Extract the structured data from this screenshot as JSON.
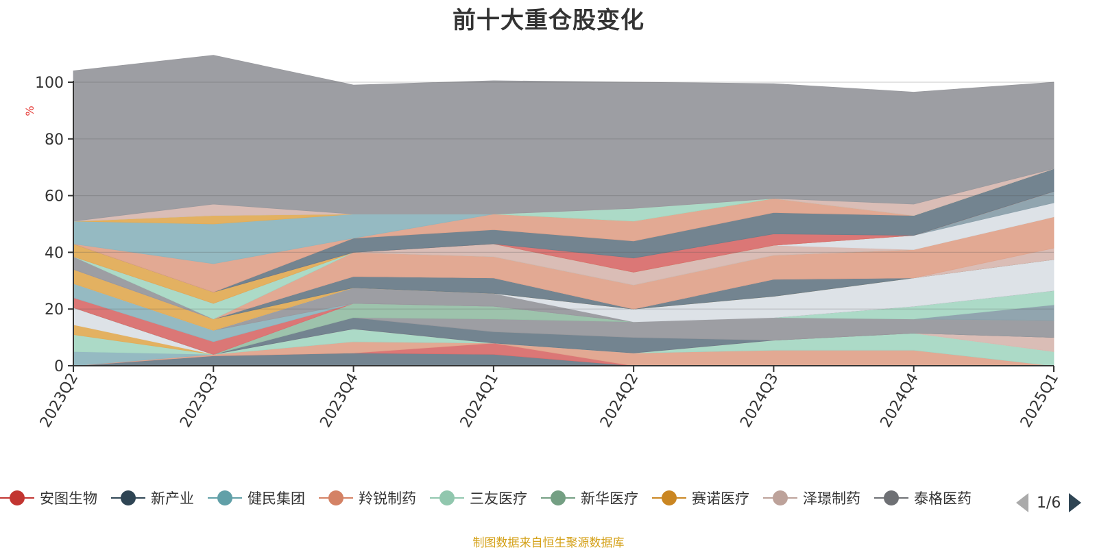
{
  "header": {
    "title": "前十大重仓股变化"
  },
  "footer": {
    "source": "制图数据来自恒生聚源数据库"
  },
  "pager": {
    "text": "1/6"
  },
  "colors": {
    "footer": "#d4a017",
    "pager_active": "#2f4554",
    "pager_inactive": "#aaaaaa",
    "unit": "#e53935"
  },
  "chart_data": {
    "type": "area",
    "title": "前十大重仓股变化",
    "ylabel": "%",
    "ylim": [
      0,
      100
    ],
    "yticks": [
      0,
      20,
      40,
      60,
      80,
      100
    ],
    "grid": true,
    "legend_position": "bottom",
    "categories": [
      "2023Q2",
      "2023Q3",
      "2023Q4",
      "2024Q1",
      "2024Q2",
      "2024Q3",
      "2024Q4",
      "2025Q1"
    ],
    "series": [
      {
        "name": "",
        "color": "#6b7d8a",
        "values": [
          0,
          3.5,
          4.5,
          4,
          0,
          0,
          0,
          0
        ]
      },
      {
        "name": "",
        "color": "#d9706f",
        "values": [
          0,
          0,
          0,
          4,
          0,
          0,
          0,
          0
        ]
      },
      {
        "name": "",
        "color": "#e0a48d",
        "values": [
          0,
          0.5,
          4,
          0,
          4.5,
          5.5,
          5.5,
          0
        ]
      },
      {
        "name": "",
        "color": "#8fb6bf",
        "values": [
          5,
          0,
          0,
          0,
          0,
          0,
          0,
          0
        ]
      },
      {
        "name": "",
        "color": "#a8d8c4",
        "values": [
          6,
          0,
          4.5,
          0,
          0,
          3.5,
          6,
          5
        ]
      },
      {
        "name": "",
        "color": "#e2ad59",
        "values": [
          3.5,
          0,
          0,
          0,
          0,
          0,
          0,
          0
        ]
      },
      {
        "name": "",
        "color": "#dbe0e6",
        "values": [
          6,
          0,
          0,
          0,
          0,
          0,
          0,
          0
        ]
      },
      {
        "name": "",
        "color": "#d8b9b2",
        "values": [
          0,
          0,
          0,
          0,
          0,
          0,
          0,
          5
        ]
      },
      {
        "name": "",
        "color": "#6b7d8a",
        "values": [
          0,
          0,
          4,
          4,
          5.5,
          0,
          0,
          0
        ]
      },
      {
        "name": "",
        "color": "#98999e",
        "values": [
          0,
          0,
          0,
          4.5,
          5.5,
          8,
          5,
          6
        ]
      },
      {
        "name": "",
        "color": "#98c0a8",
        "values": [
          0,
          0,
          5,
          4.5,
          0,
          0,
          0,
          0
        ]
      },
      {
        "name": "",
        "color": "#8ba0ab",
        "values": [
          0,
          0,
          0,
          0,
          0,
          0,
          0,
          5.5
        ]
      },
      {
        "name": "",
        "color": "#a8d8c4",
        "values": [
          0,
          0,
          0,
          0,
          0,
          0,
          4.5,
          5
        ]
      },
      {
        "name": "",
        "color": "#d9706f",
        "values": [
          3.5,
          4.5,
          0,
          0,
          0,
          0,
          0,
          0
        ]
      },
      {
        "name": "",
        "color": "#8fb6bf",
        "values": [
          5,
          4,
          0,
          0,
          0,
          0,
          0,
          0
        ]
      },
      {
        "name": "",
        "color": "#98999e",
        "values": [
          0,
          0,
          5.5,
          4.5,
          0,
          0,
          0,
          0
        ]
      },
      {
        "name": "",
        "color": "#dbe0e6",
        "values": [
          0,
          0,
          0,
          0,
          4.5,
          7.5,
          10,
          11
        ]
      },
      {
        "name": "",
        "color": "#e2ad59",
        "values": [
          5,
          4,
          0,
          0,
          0,
          0,
          0,
          0
        ]
      },
      {
        "name": "",
        "color": "#6b7d8a",
        "values": [
          0,
          0,
          4,
          5.5,
          0,
          6,
          0,
          0
        ]
      },
      {
        "name": "",
        "color": "#d8b9b2",
        "values": [
          0,
          0,
          0,
          0,
          0,
          0,
          0,
          4
        ]
      },
      {
        "name": "",
        "color": "#e0a48d",
        "values": [
          0,
          0,
          8.5,
          7.5,
          8.5,
          8.5,
          10,
          11
        ]
      },
      {
        "name": "",
        "color": "#98999e",
        "values": [
          4.5,
          0,
          0,
          0,
          0,
          0,
          0,
          0
        ]
      },
      {
        "name": "",
        "color": "#a8d8c4",
        "values": [
          0,
          5.5,
          0,
          0,
          0,
          0,
          0,
          0
        ]
      },
      {
        "name": "",
        "color": "#d8b9b2",
        "values": [
          0,
          0,
          0,
          4.5,
          4.5,
          3.5,
          0,
          0
        ]
      },
      {
        "name": "",
        "color": "#dbe0e6",
        "values": [
          0,
          0,
          0,
          0,
          0,
          0,
          5,
          5
        ]
      },
      {
        "name": "",
        "color": "#8ba0ab",
        "values": [
          0,
          0,
          0,
          0,
          0,
          0,
          0,
          4
        ]
      },
      {
        "name": "",
        "color": "#e2ad59",
        "values": [
          4.5,
          4,
          0,
          0,
          0,
          0,
          0,
          0
        ]
      },
      {
        "name": "",
        "color": "#d9706f",
        "values": [
          0,
          0,
          0,
          0,
          5,
          4,
          0,
          0
        ]
      },
      {
        "name": "",
        "color": "#6b7d8a",
        "values": [
          0,
          0,
          5,
          5,
          6,
          7.5,
          7,
          8
        ]
      },
      {
        "name": "",
        "color": "#e0a48d",
        "values": [
          0,
          10,
          0,
          5.5,
          7,
          5,
          0,
          0
        ]
      },
      {
        "name": "",
        "color": "#8fb6bf",
        "values": [
          8,
          14,
          8.5,
          0,
          0,
          0,
          0,
          0
        ]
      },
      {
        "name": "",
        "color": "#e2ad59",
        "values": [
          0,
          3,
          0,
          0,
          0,
          0,
          0,
          0
        ]
      },
      {
        "name": "",
        "color": "#a8d8c4",
        "values": [
          0,
          0,
          0,
          0,
          4.5,
          0,
          0,
          0
        ]
      },
      {
        "name": "",
        "color": "#d8b9b2",
        "values": [
          0,
          4,
          0,
          0,
          0,
          0,
          4,
          0
        ]
      },
      {
        "name": "",
        "color": "#98999e",
        "values": [
          53,
          52.5,
          45.5,
          47,
          44.5,
          40.5,
          39.5,
          30.5
        ]
      }
    ]
  },
  "legend": {
    "items": [
      {
        "label": "安图生物",
        "color": "#c23531"
      },
      {
        "label": "新产业",
        "color": "#2f4554"
      },
      {
        "label": "健民集团",
        "color": "#61a0a8"
      },
      {
        "label": "羚锐制药",
        "color": "#d48265"
      },
      {
        "label": "三友医疗",
        "color": "#91c7ae"
      },
      {
        "label": "新华医疗",
        "color": "#749f83"
      },
      {
        "label": "赛诺医疗",
        "color": "#ca8622"
      },
      {
        "label": "泽璟制药",
        "color": "#bda29a"
      },
      {
        "label": "泰格医药",
        "color": "#6e7074"
      }
    ]
  }
}
